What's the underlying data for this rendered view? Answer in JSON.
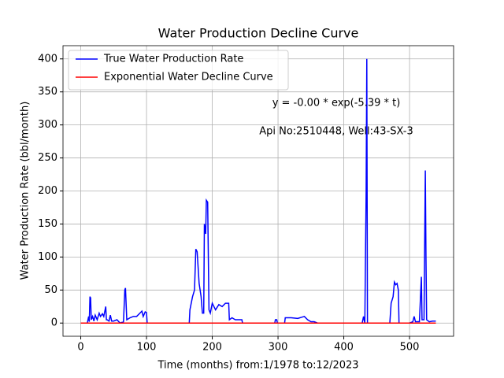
{
  "chart_data": {
    "type": "line",
    "title": "Water Production Decline Curve",
    "xlabel": "Time (months) from:1/1978 to:12/2023",
    "ylabel": "Water Production Rate (bbl/month)",
    "annotations": [
      "y = -0.00 * exp(-5.39 * t)",
      "Api No:2510448, Well:43-SX-3"
    ],
    "xlim": [
      -27,
      567
    ],
    "ylim": [
      -20,
      420
    ],
    "xticks": [
      0,
      100,
      200,
      300,
      400,
      500
    ],
    "yticks": [
      0,
      50,
      100,
      150,
      200,
      250,
      300,
      350,
      400
    ],
    "grid": true,
    "legend": "upper left",
    "series": [
      {
        "name": "True Water Production Rate",
        "color": "#0000ff",
        "x": [
          0,
          10,
          12,
          13,
          14,
          15,
          16,
          18,
          20,
          22,
          25,
          28,
          30,
          33,
          35,
          38,
          39,
          40,
          43,
          45,
          47,
          50,
          55,
          60,
          65,
          67,
          68,
          70,
          75,
          80,
          85,
          90,
          93,
          95,
          98,
          100,
          101,
          165,
          166,
          170,
          173,
          175,
          177,
          180,
          183,
          185,
          187,
          188,
          190,
          191,
          193,
          195,
          197,
          200,
          205,
          210,
          215,
          220,
          225,
          226,
          230,
          235,
          245,
          246,
          295,
          296,
          298,
          299,
          310,
          311,
          320,
          330,
          340,
          345,
          350,
          355,
          360,
          428,
          430,
          432,
          434,
          435,
          436,
          440,
          470,
          472,
          475,
          477,
          479,
          481,
          483,
          484,
          500,
          505,
          507,
          509,
          515,
          518,
          519,
          522,
          524,
          525,
          526,
          530,
          535,
          540
        ],
        "values": [
          0,
          0,
          10,
          2,
          40,
          38,
          5,
          10,
          3,
          12,
          5,
          15,
          10,
          14,
          10,
          25,
          5,
          5,
          3,
          12,
          3,
          3,
          5,
          0,
          2,
          50,
          53,
          5,
          8,
          10,
          10,
          15,
          18,
          10,
          17,
          16,
          0,
          0,
          20,
          40,
          50,
          112,
          108,
          60,
          40,
          15,
          15,
          150,
          135,
          186,
          183,
          20,
          15,
          30,
          20,
          28,
          25,
          30,
          30,
          5,
          8,
          5,
          5,
          0,
          0,
          5,
          5,
          0,
          0,
          8,
          8,
          7,
          10,
          5,
          2,
          2,
          0,
          0,
          10,
          0,
          200,
          400,
          0,
          0,
          0,
          30,
          40,
          62,
          58,
          60,
          50,
          0,
          0,
          2,
          10,
          2,
          2,
          70,
          5,
          5,
          231,
          100,
          5,
          2,
          3,
          3
        ]
      },
      {
        "name": "Exponential Water Decline Curve",
        "color": "#ff0000",
        "x": [
          0,
          540
        ],
        "values": [
          0,
          0
        ]
      }
    ]
  }
}
